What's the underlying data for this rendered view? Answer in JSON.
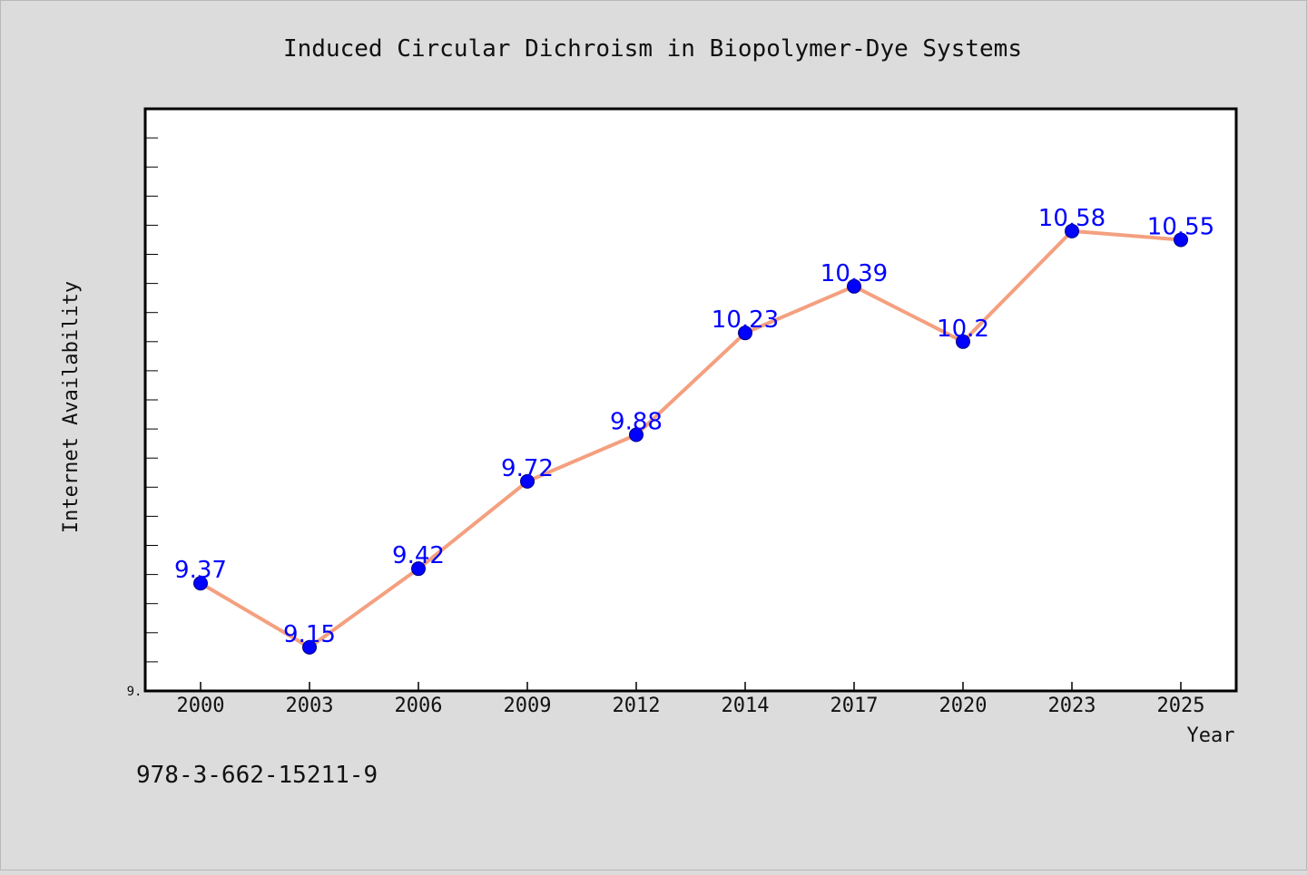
{
  "chart_data": {
    "type": "line",
    "title": "Induced Circular Dichroism in Biopolymer-Dye Systems",
    "xlabel": "Year",
    "ylabel": "Internet Availability",
    "categories": [
      "2000",
      "2003",
      "2006",
      "2009",
      "2012",
      "2014",
      "2017",
      "2020",
      "2023",
      "2025"
    ],
    "series": [
      {
        "values": [
          9.37,
          9.15,
          9.42,
          9.72,
          9.88,
          10.23,
          10.39,
          10.2,
          10.58,
          10.55
        ],
        "labels": [
          "9.37",
          "9.15",
          "9.42",
          "9.72",
          "9.88",
          "10.23",
          "10.39",
          "10.2",
          "10.58",
          "10.55"
        ]
      }
    ],
    "y_tick_label": "9.",
    "ylim": [
      9.0,
      11.0
    ],
    "y_minor_step": 0.1,
    "grid": false,
    "legend": "none",
    "line_color": "#f4a07f",
    "marker_color": "#0000ff",
    "label_color": "#0000ff"
  },
  "footnote": "978-3-662-15211-9",
  "colors": {
    "background": "#dcdcdc",
    "plot_background": "#ffffff",
    "frame": "#000000"
  }
}
